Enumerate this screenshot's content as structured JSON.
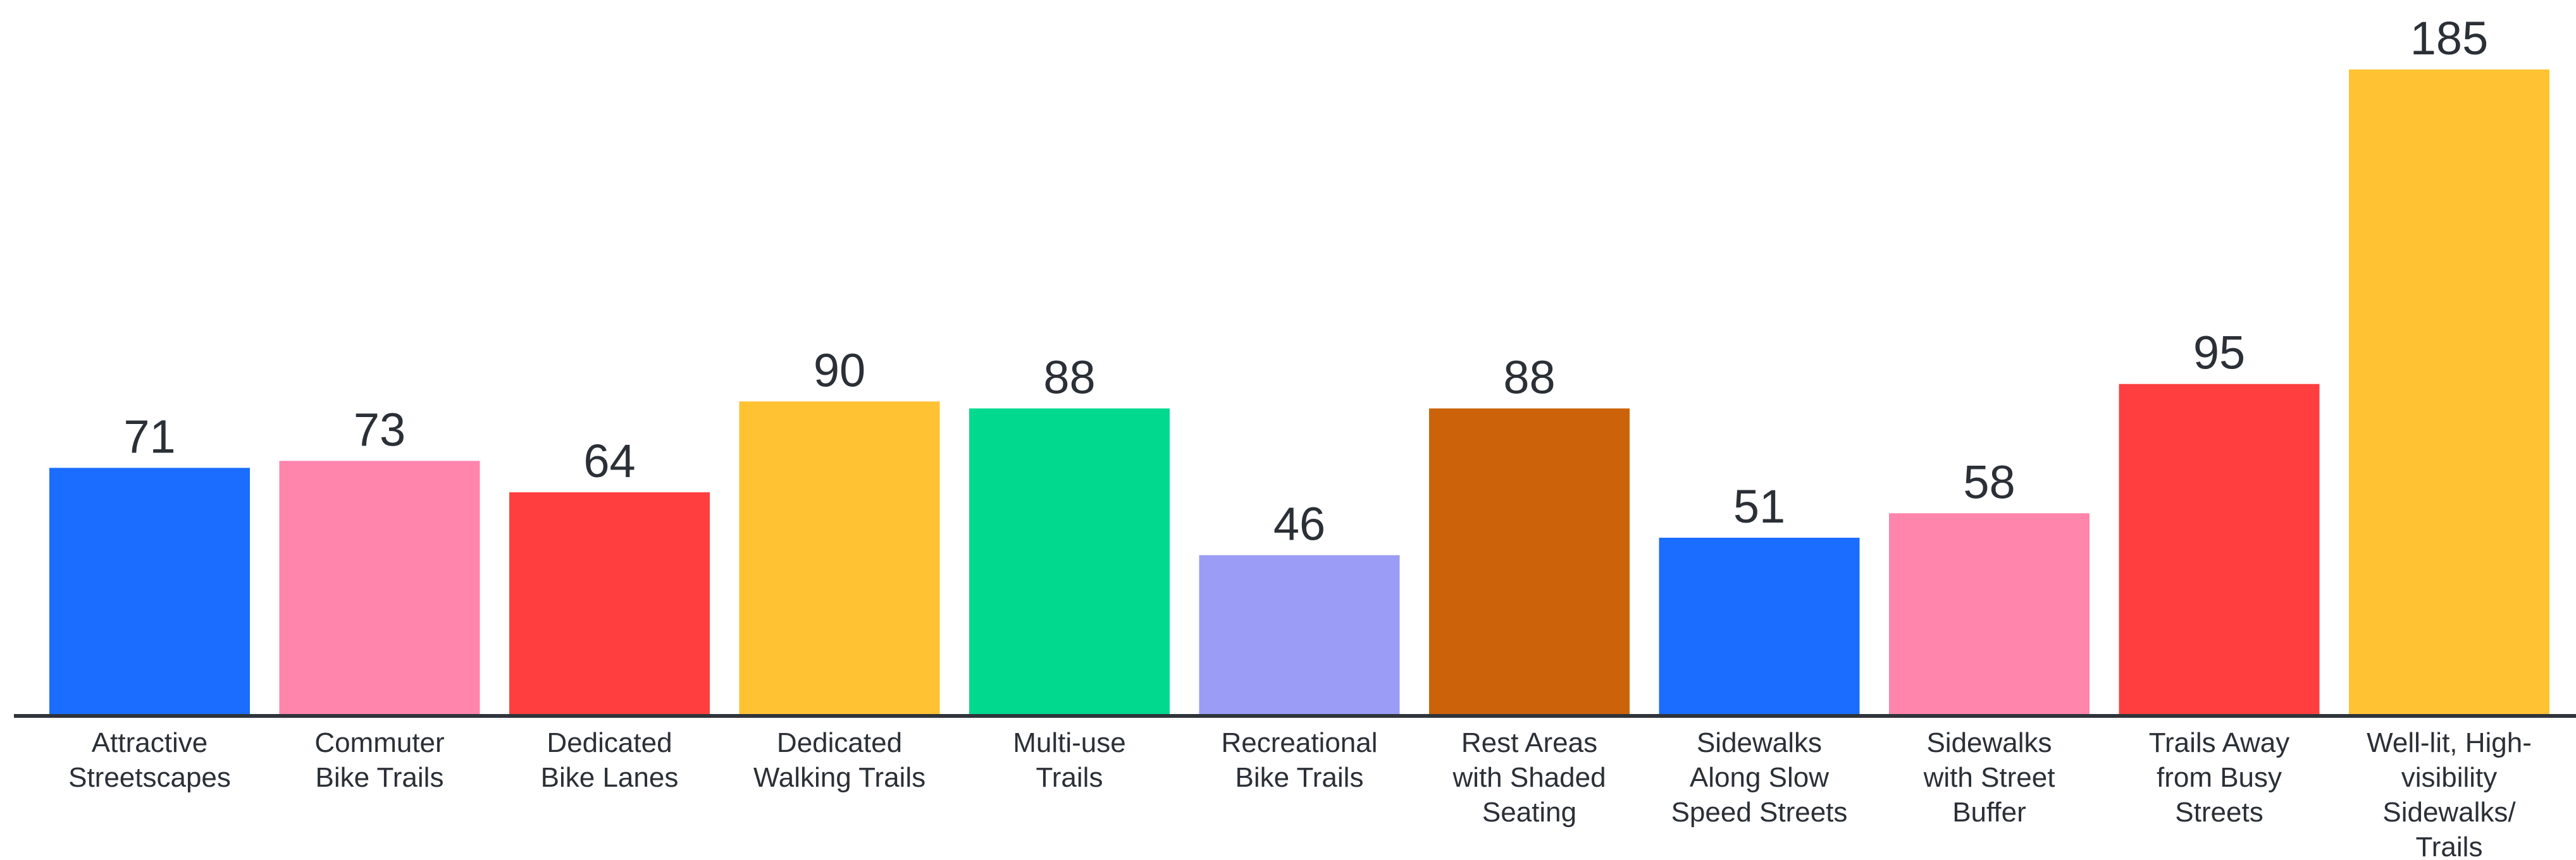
{
  "chart_data": {
    "type": "bar",
    "title": "",
    "xlabel": "",
    "ylabel": "",
    "ylim": [
      0,
      185
    ],
    "grid": false,
    "legend": "none",
    "categories": [
      [
        "Attractive",
        "Streetscapes"
      ],
      [
        "Commuter",
        "Bike Trails"
      ],
      [
        "Dedicated",
        "Bike Lanes"
      ],
      [
        "Dedicated",
        "Walking Trails"
      ],
      [
        "Multi-use",
        "Trails"
      ],
      [
        "Recreational",
        "Bike Trails"
      ],
      [
        "Rest Areas",
        "with Shaded",
        "Seating"
      ],
      [
        "Sidewalks",
        "Along Slow",
        "Speed Streets"
      ],
      [
        "Sidewalks",
        "with Street",
        "Buffer"
      ],
      [
        "Trails Away",
        "from Busy",
        "Streets"
      ],
      [
        "Well-lit, High-",
        "visibility",
        "Sidewalks/",
        "Trails"
      ]
    ],
    "values": [
      71,
      73,
      64,
      90,
      88,
      46,
      88,
      51,
      58,
      95,
      185
    ],
    "value_labels": [
      "71",
      "73",
      "64",
      "90",
      "88",
      "46",
      "88",
      "51",
      "58",
      "95",
      "185"
    ],
    "colors": [
      "#1a6dff",
      "#ff85ad",
      "#ff3f3f",
      "#ffc233",
      "#00d98e",
      "#9a9cf5",
      "#cc6209",
      "#1a6dff",
      "#ff85ad",
      "#ff3f3f",
      "#ffc233"
    ]
  }
}
